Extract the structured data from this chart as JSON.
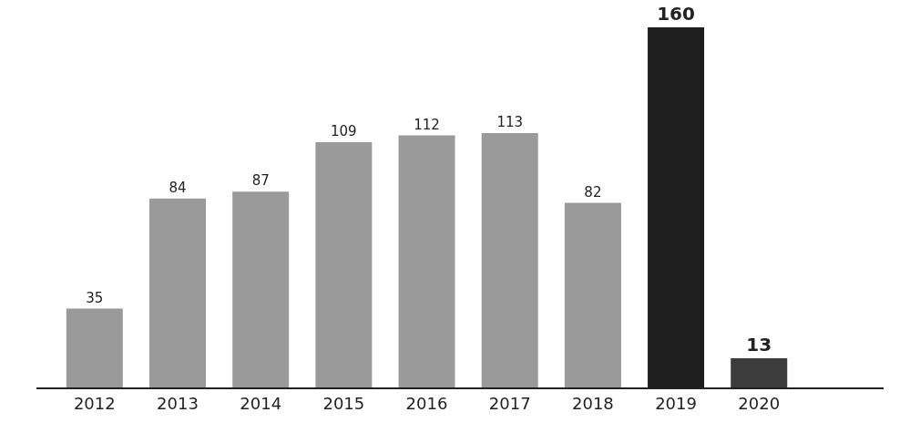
{
  "chart_data": {
    "type": "bar",
    "categories": [
      "2012",
      "2013",
      "2014",
      "2015",
      "2016",
      "2017",
      "2018",
      "2019",
      "2020"
    ],
    "values": [
      35,
      84,
      87,
      109,
      112,
      113,
      82,
      160,
      13
    ],
    "colors": [
      "#9a9a9a",
      "#9a9a9a",
      "#9a9a9a",
      "#9a9a9a",
      "#9a9a9a",
      "#9a9a9a",
      "#9a9a9a",
      "#1e1e1e",
      "#3c3c3c"
    ],
    "data_labels": true,
    "legend": false
  }
}
